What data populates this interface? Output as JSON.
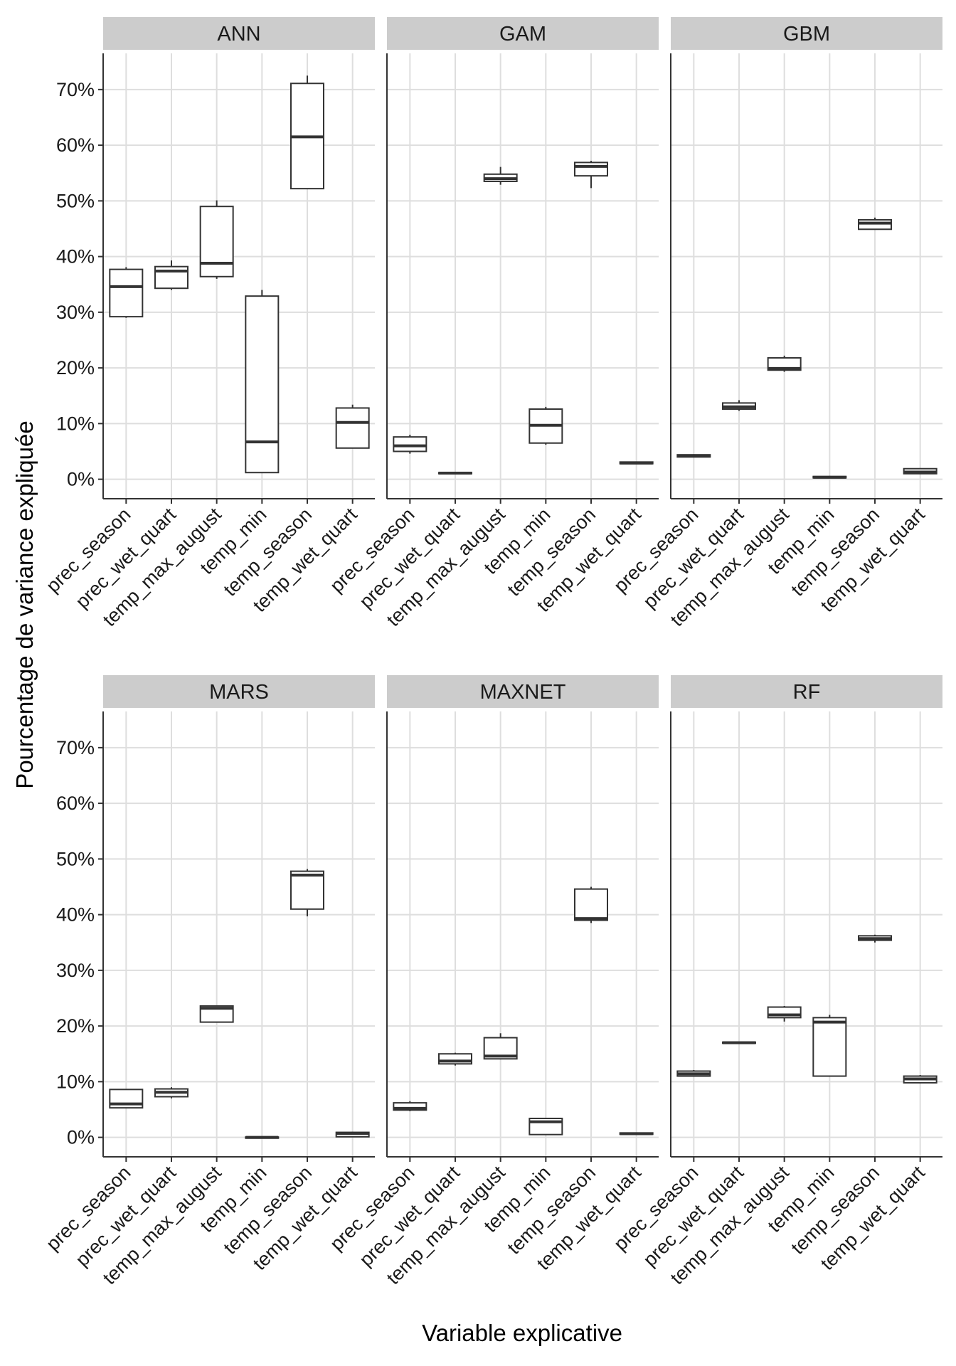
{
  "chart_data": {
    "type": "boxplot",
    "xlabel": "Variable explicative",
    "ylabel": "Pourcentage de variance expliquée",
    "ylim": [
      -3.5,
      76.5
    ],
    "yticks": [
      0,
      10,
      20,
      30,
      40,
      50,
      60,
      70
    ],
    "ytick_labels": [
      "0%",
      "10%",
      "20%",
      "30%",
      "40%",
      "50%",
      "60%",
      "70%"
    ],
    "categories": [
      "prec_season",
      "prec_wet_quart",
      "temp_max_august",
      "temp_min",
      "temp_season",
      "temp_wet_quart"
    ],
    "grid": true,
    "colors": {
      "strip_bg": "#cccccc",
      "grid": "#dedede",
      "box_stroke": "#333333",
      "axis": "#333333"
    },
    "panels": [
      {
        "name": "ANN",
        "boxes": [
          {
            "min": 29.0,
            "q1": 29.2,
            "median": 34.6,
            "q3": 37.7,
            "max": 38.1
          },
          {
            "min": 34.0,
            "q1": 34.3,
            "median": 37.4,
            "q3": 38.2,
            "max": 39.3
          },
          {
            "min": 36.0,
            "q1": 36.4,
            "median": 38.8,
            "q3": 49.0,
            "max": 50.1
          },
          {
            "min": 1.2,
            "q1": 1.2,
            "median": 6.7,
            "q3": 32.9,
            "max": 34.0
          },
          {
            "min": 52.2,
            "q1": 52.2,
            "median": 61.5,
            "q3": 71.1,
            "max": 72.5
          },
          {
            "min": 5.6,
            "q1": 5.6,
            "median": 10.2,
            "q3": 12.8,
            "max": 13.4
          }
        ]
      },
      {
        "name": "GAM",
        "boxes": [
          {
            "min": 4.6,
            "q1": 5.0,
            "median": 6.0,
            "q3": 7.6,
            "max": 8.0
          },
          {
            "min": 0.9,
            "q1": 1.0,
            "median": 1.1,
            "q3": 1.2,
            "max": 1.3
          },
          {
            "min": 52.9,
            "q1": 53.5,
            "median": 54.0,
            "q3": 54.8,
            "max": 56.1
          },
          {
            "min": 6.2,
            "q1": 6.5,
            "median": 9.7,
            "q3": 12.6,
            "max": 13.0
          },
          {
            "min": 52.3,
            "q1": 54.5,
            "median": 56.2,
            "q3": 56.9,
            "max": 57.2
          },
          {
            "min": 2.7,
            "q1": 2.8,
            "median": 2.9,
            "q3": 3.1,
            "max": 3.2
          }
        ]
      },
      {
        "name": "GBM",
        "boxes": [
          {
            "min": 3.9,
            "q1": 4.0,
            "median": 4.2,
            "q3": 4.4,
            "max": 4.5
          },
          {
            "min": 12.3,
            "q1": 12.6,
            "median": 13.0,
            "q3": 13.7,
            "max": 14.2
          },
          {
            "min": 19.3,
            "q1": 19.6,
            "median": 19.9,
            "q3": 21.8,
            "max": 22.2
          },
          {
            "min": 0.2,
            "q1": 0.25,
            "median": 0.35,
            "q3": 0.5,
            "max": 0.6
          },
          {
            "min": 44.8,
            "q1": 44.9,
            "median": 46.0,
            "q3": 46.6,
            "max": 47.0
          },
          {
            "min": 0.9,
            "q1": 1.0,
            "median": 1.3,
            "q3": 1.9,
            "max": 2.0
          }
        ]
      },
      {
        "name": "MARS",
        "boxes": [
          {
            "min": 5.2,
            "q1": 5.3,
            "median": 6.0,
            "q3": 8.6,
            "max": 8.7
          },
          {
            "min": 7.0,
            "q1": 7.3,
            "median": 8.1,
            "q3": 8.7,
            "max": 9.0
          },
          {
            "min": 20.6,
            "q1": 20.7,
            "median": 23.2,
            "q3": 23.6,
            "max": 23.7
          },
          {
            "min": -0.1,
            "q1": -0.05,
            "median": 0.0,
            "q3": 0.05,
            "max": 0.1
          },
          {
            "min": 39.7,
            "q1": 41.0,
            "median": 47.1,
            "q3": 47.8,
            "max": 48.2
          },
          {
            "min": 0.0,
            "q1": 0.1,
            "median": 0.7,
            "q3": 0.9,
            "max": 1.0
          }
        ]
      },
      {
        "name": "MAXNET",
        "boxes": [
          {
            "min": 4.7,
            "q1": 4.9,
            "median": 5.2,
            "q3": 6.2,
            "max": 6.5
          },
          {
            "min": 12.9,
            "q1": 13.2,
            "median": 13.7,
            "q3": 15.0,
            "max": 15.2
          },
          {
            "min": 14.0,
            "q1": 14.1,
            "median": 14.6,
            "q3": 17.9,
            "max": 18.7
          },
          {
            "min": 0.5,
            "q1": 0.5,
            "median": 2.8,
            "q3": 3.4,
            "max": 3.5
          },
          {
            "min": 38.5,
            "q1": 39.0,
            "median": 39.3,
            "q3": 44.6,
            "max": 45.0
          },
          {
            "min": 0.5,
            "q1": 0.55,
            "median": 0.65,
            "q3": 0.8,
            "max": 0.9
          }
        ]
      },
      {
        "name": "RF",
        "boxes": [
          {
            "min": 10.9,
            "q1": 11.0,
            "median": 11.4,
            "q3": 11.9,
            "max": 12.1
          },
          {
            "min": 16.8,
            "q1": 16.9,
            "median": 17.0,
            "q3": 17.1,
            "max": 17.2
          },
          {
            "min": 20.8,
            "q1": 21.5,
            "median": 22.0,
            "q3": 23.4,
            "max": 23.6
          },
          {
            "min": 11.0,
            "q1": 11.0,
            "median": 20.7,
            "q3": 21.5,
            "max": 22.0
          },
          {
            "min": 35.0,
            "q1": 35.4,
            "median": 35.7,
            "q3": 36.2,
            "max": 36.4
          },
          {
            "min": 9.7,
            "q1": 9.8,
            "median": 10.5,
            "q3": 11.0,
            "max": 11.2
          }
        ]
      }
    ]
  }
}
